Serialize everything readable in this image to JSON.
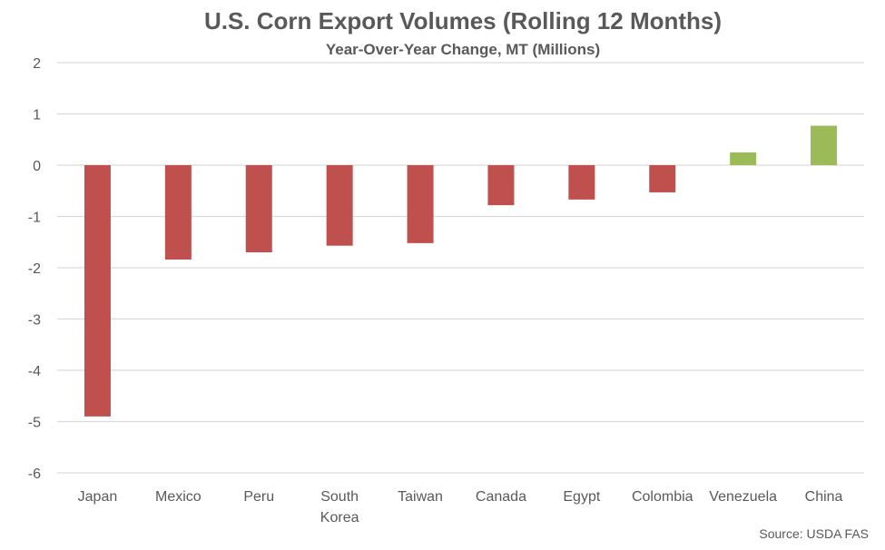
{
  "chart_data": {
    "type": "bar",
    "title": "U.S. Corn Export Volumes (Rolling 12 Months)",
    "subtitle": "Year-Over-Year Change, MT (Millions)",
    "xlabel": "",
    "ylabel": "",
    "categories": [
      [
        "Japan"
      ],
      [
        "Mexico"
      ],
      [
        "Peru"
      ],
      [
        "South",
        "Korea"
      ],
      [
        "Taiwan"
      ],
      [
        "Canada"
      ],
      [
        "Egypt"
      ],
      [
        "Colombia"
      ],
      [
        "Venezuela"
      ],
      [
        "China"
      ]
    ],
    "values": [
      -4.9,
      -1.84,
      -1.7,
      -1.57,
      -1.52,
      -0.78,
      -0.67,
      -0.53,
      0.25,
      0.77
    ],
    "ylim": [
      -6,
      2
    ],
    "yticks": [
      "2",
      "1",
      "0",
      "-1",
      "-2",
      "-3",
      "-4",
      "-5",
      "-6"
    ],
    "grid": true,
    "legend": "none",
    "colors": {
      "negative": "#c0504d",
      "positive": "#9bbb59",
      "grid": "#d9d9d9",
      "text": "#595959"
    },
    "source": "Source: USDA FAS"
  }
}
